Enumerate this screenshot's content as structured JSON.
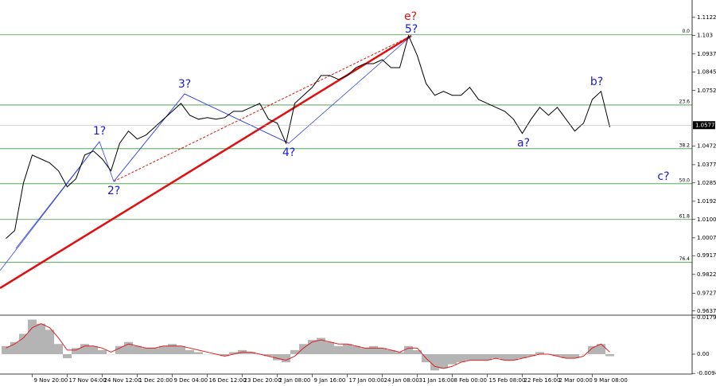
{
  "chart_data": [
    {
      "type": "line",
      "color": "#000000",
      "categories": [
        null,
        null,
        null,
        "9 Nov 20:00",
        null,
        null,
        null,
        "17 Nov 04:00",
        null,
        null,
        null,
        "24 Nov 12:00",
        null,
        null,
        null,
        "1 Dec 20:00",
        null,
        null,
        null,
        "9 Dec 04:00",
        null,
        null,
        null,
        "16 Dec 12:00",
        null,
        null,
        null,
        "23 Dec 20:00",
        null,
        null,
        null,
        "2 Jan 08:00",
        null,
        null,
        null,
        "9 Jan 16:00",
        null,
        null,
        null,
        "17 Jan 00:00",
        null,
        null,
        null,
        "24 Jan 08:00",
        null,
        null,
        null,
        "31 Jan 16:00",
        null,
        null,
        null,
        "8 Feb 00:00",
        null,
        null,
        null,
        "15 Feb 08:00",
        null,
        null,
        null,
        "22 Feb 16:00",
        null,
        null,
        null,
        "2 Mar 00:00",
        null,
        null,
        null,
        "9 Mar 08:00",
        null,
        null
      ],
      "values": [
        1.0004,
        1.0044,
        1.0285,
        1.0426,
        1.0406,
        1.0386,
        1.0346,
        1.0265,
        1.0306,
        1.0426,
        1.0446,
        1.0406,
        1.0346,
        1.0486,
        1.0547,
        1.0507,
        1.0527,
        1.0567,
        1.0607,
        1.0647,
        1.0687,
        1.0627,
        1.0607,
        1.0615,
        1.0607,
        1.0615,
        1.0647,
        1.0647,
        1.0667,
        1.0687,
        1.0607,
        1.0587,
        1.0486,
        1.0687,
        1.0728,
        1.0768,
        1.0828,
        1.0828,
        1.0808,
        1.0828,
        1.0868,
        1.0888,
        1.0888,
        1.0908,
        1.0868,
        1.0868,
        1.103,
        1.0929,
        1.0788,
        1.0728,
        1.0748,
        1.0728,
        1.0728,
        1.0768,
        1.0707,
        1.0687,
        1.0667,
        1.0647,
        1.0607,
        1.0535,
        1.0607,
        1.0667,
        1.0627,
        1.0667,
        1.0607,
        1.0547,
        1.0587,
        1.0707,
        1.0748,
        1.0567
      ],
      "ylim": [
        0.962,
        1.121
      ],
      "yticks": [
        1.1122,
        1.103,
        1.0937,
        1.0845,
        1.0752,
        1.0472,
        1.0377,
        1.0285,
        1.0192,
        {
          "value": 1.01,
          "label": "1.0100"
        },
        1.0007,
        0.9917,
        0.9822,
        0.9727,
        0.9637
      ],
      "current_price": 1.0577,
      "levels": [
        {
          "label": "0.0",
          "price": 1.1034
        },
        {
          "label": "23.6",
          "price": 1.0679
        },
        {
          "label": "38.2",
          "price": 1.0458
        },
        {
          "label": "50.0",
          "price": 1.0281
        },
        {
          "label": "61.8",
          "price": 1.01
        },
        {
          "label": "76.4",
          "price": 0.9883
        }
      ],
      "level_color": "#3a9a3a",
      "annotations": [
        {
          "text": "1?",
          "color": "#1a1acc"
        },
        {
          "text": "2?",
          "color": "#1a1acc"
        },
        {
          "text": "3?",
          "color": "#1a1acc"
        },
        {
          "text": "4?",
          "color": "#1a1acc"
        },
        {
          "text": "5?",
          "color": "#1a1acc"
        },
        {
          "text": "e?",
          "color": "#dd1111"
        },
        {
          "text": "a?",
          "color": "#1a1acc"
        },
        {
          "text": "b?",
          "color": "#1a1acc"
        },
        {
          "text": "c?",
          "color": "#1a1acc"
        }
      ]
    },
    {
      "type": "oscillator",
      "series": [
        {
          "color": "#b4b4b4",
          "values": [
            0.004,
            0.006,
            0.01,
            0.017,
            0.015,
            0.012,
            0.005,
            -0.002,
            0.003,
            0.005,
            0.004,
            0.002,
            0,
            0.004,
            0.006,
            0.004,
            0.003,
            0.003,
            0.004,
            0.005,
            0.004,
            0.002,
            0.001,
            0,
            0,
            -0.001,
            0.001,
            0.002,
            0.001,
            0,
            -0.001,
            -0.003,
            -0.004,
            0.002,
            0.005,
            0.007,
            0.008,
            0.006,
            0.004,
            0.005,
            0.004,
            0.003,
            0.004,
            0.003,
            0.002,
            0.001,
            0.004,
            0.002,
            -0.004,
            -0.008,
            -0.007,
            -0.005,
            -0.004,
            -0.003,
            -0.003,
            -0.003,
            -0.002,
            -0.003,
            -0.003,
            -0.002,
            -0.001,
            0.001,
            0,
            -0.001,
            -0.002,
            -0.002,
            0,
            0.004,
            0.005,
            -0.001
          ]
        },
        {
          "color": "#e02020",
          "values": [
            0.003,
            0.005,
            0.008,
            0.013,
            0.015,
            0.013,
            0.008,
            0.002,
            0.002,
            0.004,
            0.004,
            0.003,
            0.001,
            0.003,
            0.005,
            0.004,
            0.003,
            0.003,
            0.004,
            0.004,
            0.004,
            0.003,
            0.002,
            0.001,
            0,
            -0.001,
            0,
            0.001,
            0.001,
            0,
            -0.001,
            -0.002,
            -0.003,
            -0.001,
            0.003,
            0.006,
            0.007,
            0.006,
            0.005,
            0.005,
            0.004,
            0.003,
            0.003,
            0.003,
            0.002,
            0.001,
            0.003,
            0.003,
            -0.002,
            -0.006,
            -0.007,
            -0.006,
            -0.004,
            -0.003,
            -0.003,
            -0.003,
            -0.002,
            -0.003,
            -0.003,
            -0.002,
            -0.001,
            0,
            0,
            -0.001,
            -0.002,
            -0.002,
            -0.001,
            0.003,
            0.005,
            0.001
          ]
        }
      ],
      "ylim": [
        -0.0098,
        0.0184
      ],
      "yticks": [
        0.01797,
        {
          "value": 0,
          "label": "0.00"
        },
        -0.00948
      ]
    }
  ]
}
